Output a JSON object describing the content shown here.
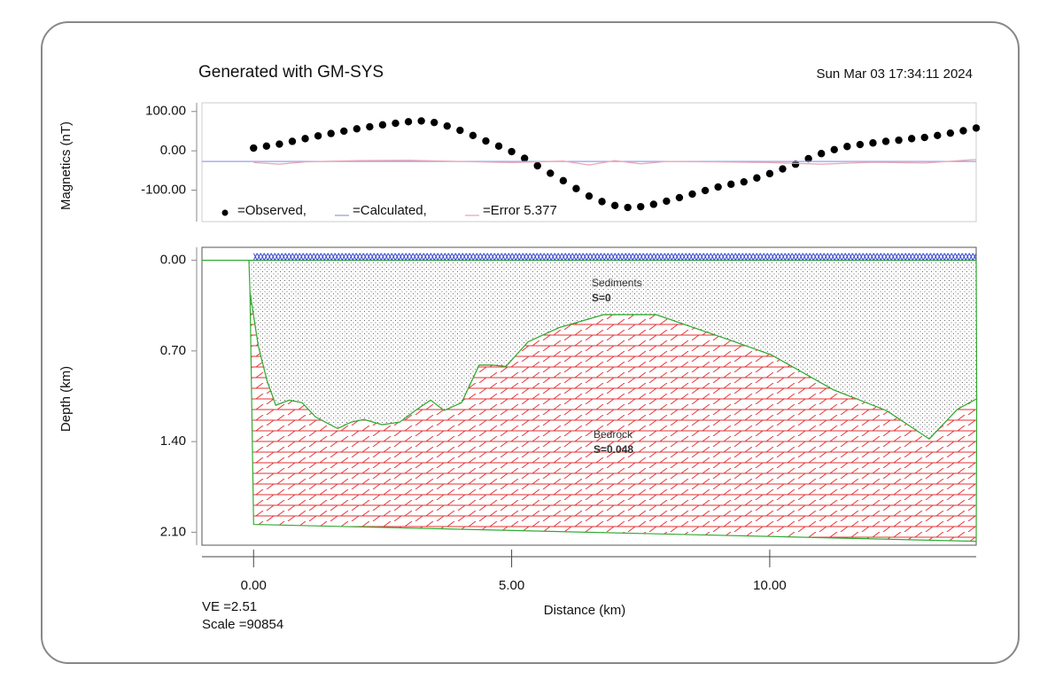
{
  "chart_data": [
    {
      "type": "line",
      "title": "Generated with GM-SYS",
      "date": "Sun Mar 03 17:34:11 2024",
      "ylabel": "Magnetics (nT)",
      "xlim": [
        -1,
        14
      ],
      "ylim": [
        -180,
        122
      ],
      "yticks": [
        {
          "value": 100,
          "label": "100.00"
        },
        {
          "value": 0,
          "label": "0.00"
        },
        {
          "value": -100,
          "label": "-100.00"
        }
      ],
      "series": [
        {
          "name": "=Observed,",
          "color": "#000000",
          "marker": "dot",
          "x": [
            0,
            0.25,
            0.5,
            0.75,
            1,
            1.25,
            1.5,
            1.75,
            2,
            2.25,
            2.5,
            2.75,
            3,
            3.25,
            3.5,
            3.75,
            4,
            4.25,
            4.5,
            4.75,
            5,
            5.25,
            5.5,
            5.75,
            6,
            6.25,
            6.5,
            6.75,
            7,
            7.25,
            7.5,
            7.75,
            8,
            8.25,
            8.5,
            8.75,
            9,
            9.25,
            9.5,
            9.75,
            10,
            10.25,
            10.5,
            10.75,
            11,
            11.25,
            11.5,
            11.75,
            12,
            12.25,
            12.5,
            12.75,
            13,
            13.25,
            13.5,
            13.75,
            14
          ],
          "values": [
            7,
            12,
            17,
            24,
            31,
            38,
            44,
            50,
            56,
            61,
            66,
            70,
            74,
            76,
            72,
            63,
            52,
            39,
            25,
            12,
            -2,
            -19,
            -38,
            -57,
            -76,
            -96,
            -115,
            -129,
            -139,
            -144,
            -142,
            -136,
            -128,
            -119,
            -110,
            -101,
            -92,
            -85,
            -79,
            -69,
            -58,
            -46,
            -34,
            -20,
            -7,
            3,
            11,
            16,
            20,
            24,
            27,
            31,
            34,
            39,
            45,
            51,
            58
          ]
        },
        {
          "name": "=Calculated,",
          "color": "#9aa0e0",
          "marker": "line",
          "x": [
            -1,
            0,
            1,
            2,
            3,
            4,
            5,
            6,
            7,
            8,
            9,
            10,
            11,
            12,
            13,
            14
          ],
          "values": [
            -27,
            -27,
            -27,
            -27,
            -27,
            -27,
            -27,
            -27,
            -27,
            -27,
            -27,
            -27,
            -27,
            -27,
            -27,
            -27
          ]
        },
        {
          "name": "=Error 5.377",
          "color": "#e8a8b8",
          "marker": "line",
          "x": [
            0,
            0.5,
            1,
            2,
            3,
            4,
            5,
            6,
            6.5,
            7,
            7.5,
            8,
            9,
            10,
            11,
            12,
            13,
            14
          ],
          "values": [
            -30,
            -34,
            -28,
            -25,
            -24,
            -27,
            -30,
            -26,
            -36,
            -25,
            -33,
            -27,
            -28,
            -30,
            -34,
            -29,
            -31,
            -22
          ]
        }
      ]
    },
    {
      "type": "section",
      "ylabel": "Depth (km)",
      "xlabel": "Distance (km)",
      "xlim": [
        -1,
        14
      ],
      "xticks": [
        {
          "value": 0,
          "label": "0.00"
        },
        {
          "value": 5,
          "label": "5.00"
        },
        {
          "value": 10,
          "label": "10.00"
        }
      ],
      "ylim": [
        -0.1,
        2.2
      ],
      "y_inverted": true,
      "yticks": [
        {
          "value": 0,
          "label": "0.00"
        },
        {
          "value": 0.7,
          "label": "0.70"
        },
        {
          "value": 1.4,
          "label": "1.40"
        },
        {
          "value": 2.1,
          "label": "2.10"
        }
      ],
      "edge_color": "#33aa33",
      "annotations": [
        "VE =2.51",
        "Scale =90854"
      ],
      "bodies": [
        {
          "name": "Sediments",
          "label": "S=0",
          "color": "#444444",
          "pattern": "dots",
          "x": [
            -0.09,
            14,
            14.01,
            13.64,
            13.09,
            12.26,
            11.23,
            10.03,
            9.18,
            7.8,
            6.78,
            5.92,
            5.32,
            4.89,
            4.63,
            4.37,
            4.03,
            3.69,
            3.43,
            3.17,
            2.83,
            2.49,
            2.14,
            1.89,
            1.63,
            1.2,
            0.94,
            0.69,
            0.43,
            0.26,
            0.09,
            -0.07
          ],
          "y": [
            0,
            0,
            1.07,
            1.15,
            1.38,
            1.16,
            1.0,
            0.73,
            0.61,
            0.42,
            0.42,
            0.52,
            0.63,
            0.82,
            0.81,
            0.81,
            1.1,
            1.16,
            1.08,
            1.15,
            1.25,
            1.27,
            1.23,
            1.25,
            1.3,
            1.21,
            1.1,
            1.08,
            1.12,
            0.93,
            0.66,
            0.25
          ]
        },
        {
          "name": "Bedrock",
          "label": "S=0.048",
          "color": "#e02020",
          "pattern": "bricks",
          "x": [
            -0.07,
            0.09,
            0.26,
            0.43,
            0.69,
            0.94,
            1.2,
            1.63,
            1.89,
            2.14,
            2.49,
            2.83,
            3.17,
            3.43,
            3.69,
            4.03,
            4.37,
            4.63,
            4.89,
            5.32,
            5.92,
            6.78,
            7.8,
            9.18,
            10.03,
            11.23,
            12.26,
            13.09,
            13.64,
            14.01,
            14,
            0
          ],
          "y": [
            0.25,
            0.66,
            0.93,
            1.12,
            1.08,
            1.1,
            1.21,
            1.3,
            1.25,
            1.23,
            1.27,
            1.25,
            1.15,
            1.08,
            1.16,
            1.1,
            0.81,
            0.81,
            0.82,
            0.63,
            0.52,
            0.42,
            0.42,
            0.61,
            0.73,
            1.0,
            1.16,
            1.38,
            1.15,
            1.07,
            2.17,
            2.04
          ]
        }
      ]
    }
  ]
}
